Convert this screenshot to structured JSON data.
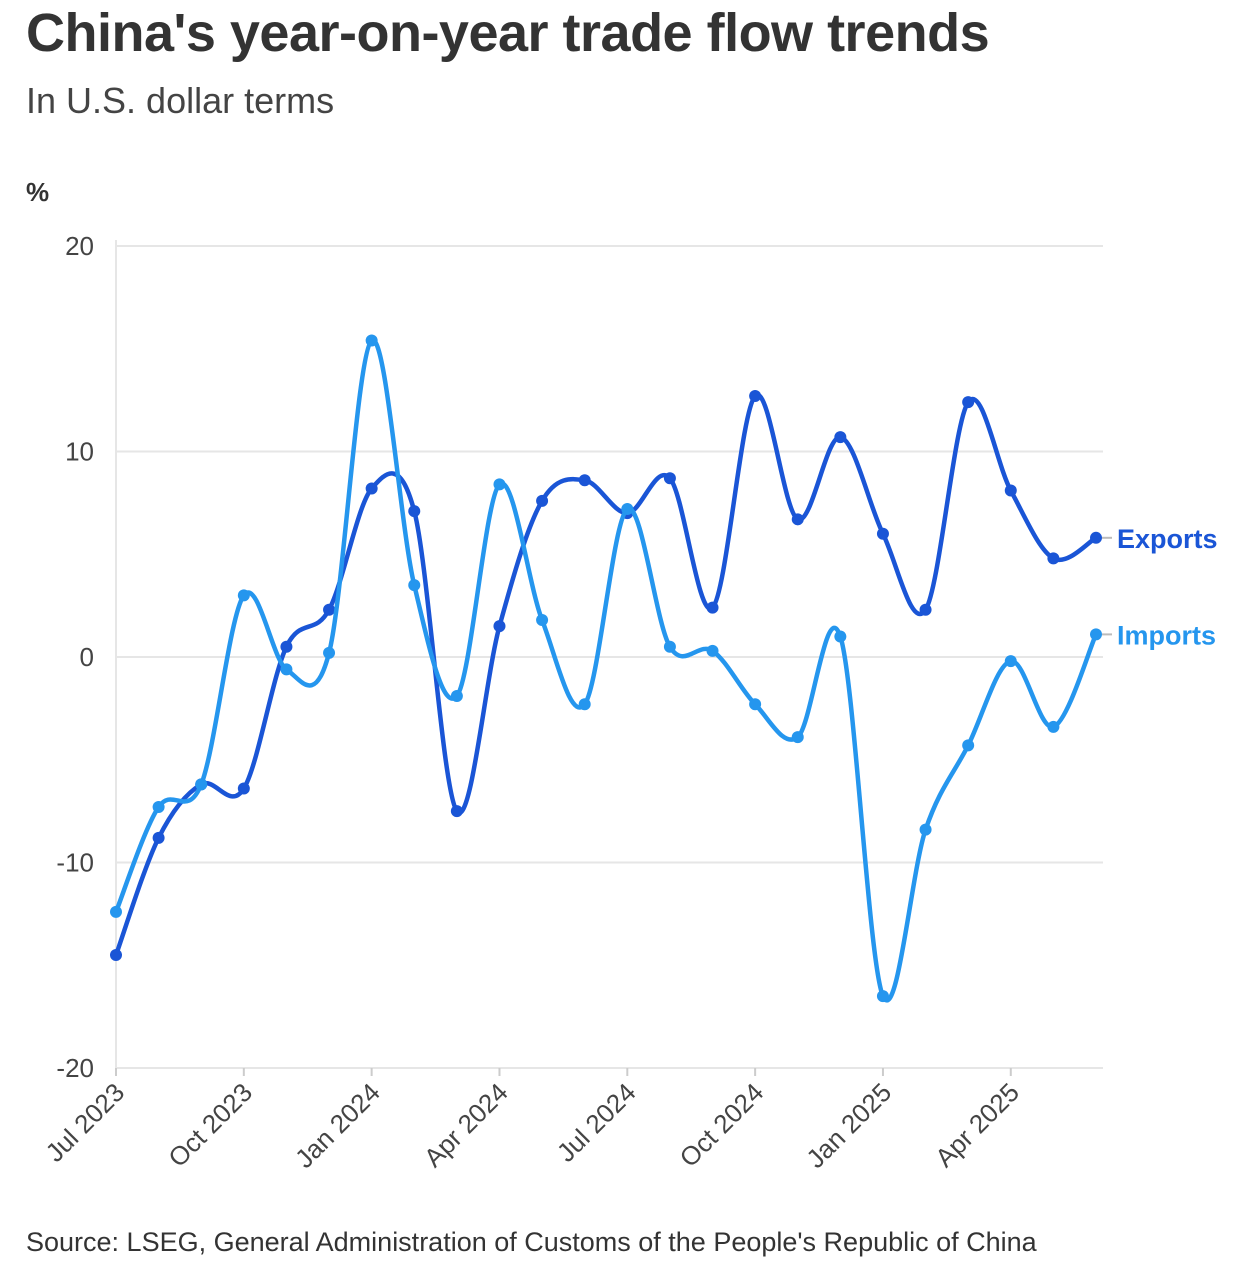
{
  "chart_data": {
    "type": "line",
    "title": "China's year-on-year trade flow trends",
    "subtitle": "In U.S. dollar terms",
    "ylabel": "%",
    "source": "Source: LSEG, General Administration of Customs of the People's Republic of China",
    "ylim": [
      -20,
      20
    ],
    "yticks": [
      "20",
      "10",
      "0",
      "-10",
      "-20"
    ],
    "x": [
      "Jul 2023",
      "Aug 2023",
      "Sep 2023",
      "Oct 2023",
      "Nov 2023",
      "Dec 2023",
      "Jan 2024",
      "Feb 2024",
      "Mar 2024",
      "Apr 2024",
      "May 2024",
      "Jun 2024",
      "Jul 2024",
      "Aug 2024",
      "Sep 2024",
      "Oct 2024",
      "Nov 2024",
      "Dec 2024",
      "Jan 2025",
      "Feb 2025",
      "Mar 2025",
      "Apr 2025",
      "May 2025",
      "Jun 2025"
    ],
    "xtick_labels": [
      "Jul 2023",
      "Oct 2023",
      "Jan 2024",
      "Apr 2024",
      "Jul 2024",
      "Oct 2024",
      "Jan 2025",
      "Apr 2025"
    ],
    "grid": true,
    "series": [
      {
        "name": "Exports",
        "color": "#1a55d6",
        "values": [
          -14.5,
          -8.8,
          -6.2,
          -6.4,
          0.5,
          2.3,
          8.2,
          7.1,
          -7.5,
          1.5,
          7.6,
          8.6,
          7.0,
          8.7,
          2.4,
          12.7,
          6.7,
          10.7,
          6.0,
          2.3,
          12.4,
          8.1,
          4.8,
          5.8
        ]
      },
      {
        "name": "Imports",
        "color": "#2596ee",
        "values": [
          -12.4,
          -7.3,
          -6.2,
          3.0,
          -0.6,
          0.2,
          15.4,
          3.5,
          -1.9,
          8.4,
          1.8,
          -2.3,
          7.2,
          0.5,
          0.3,
          -2.3,
          -3.9,
          1.0,
          -16.5,
          -8.4,
          -4.3,
          -0.2,
          -3.4,
          1.1
        ]
      }
    ]
  }
}
